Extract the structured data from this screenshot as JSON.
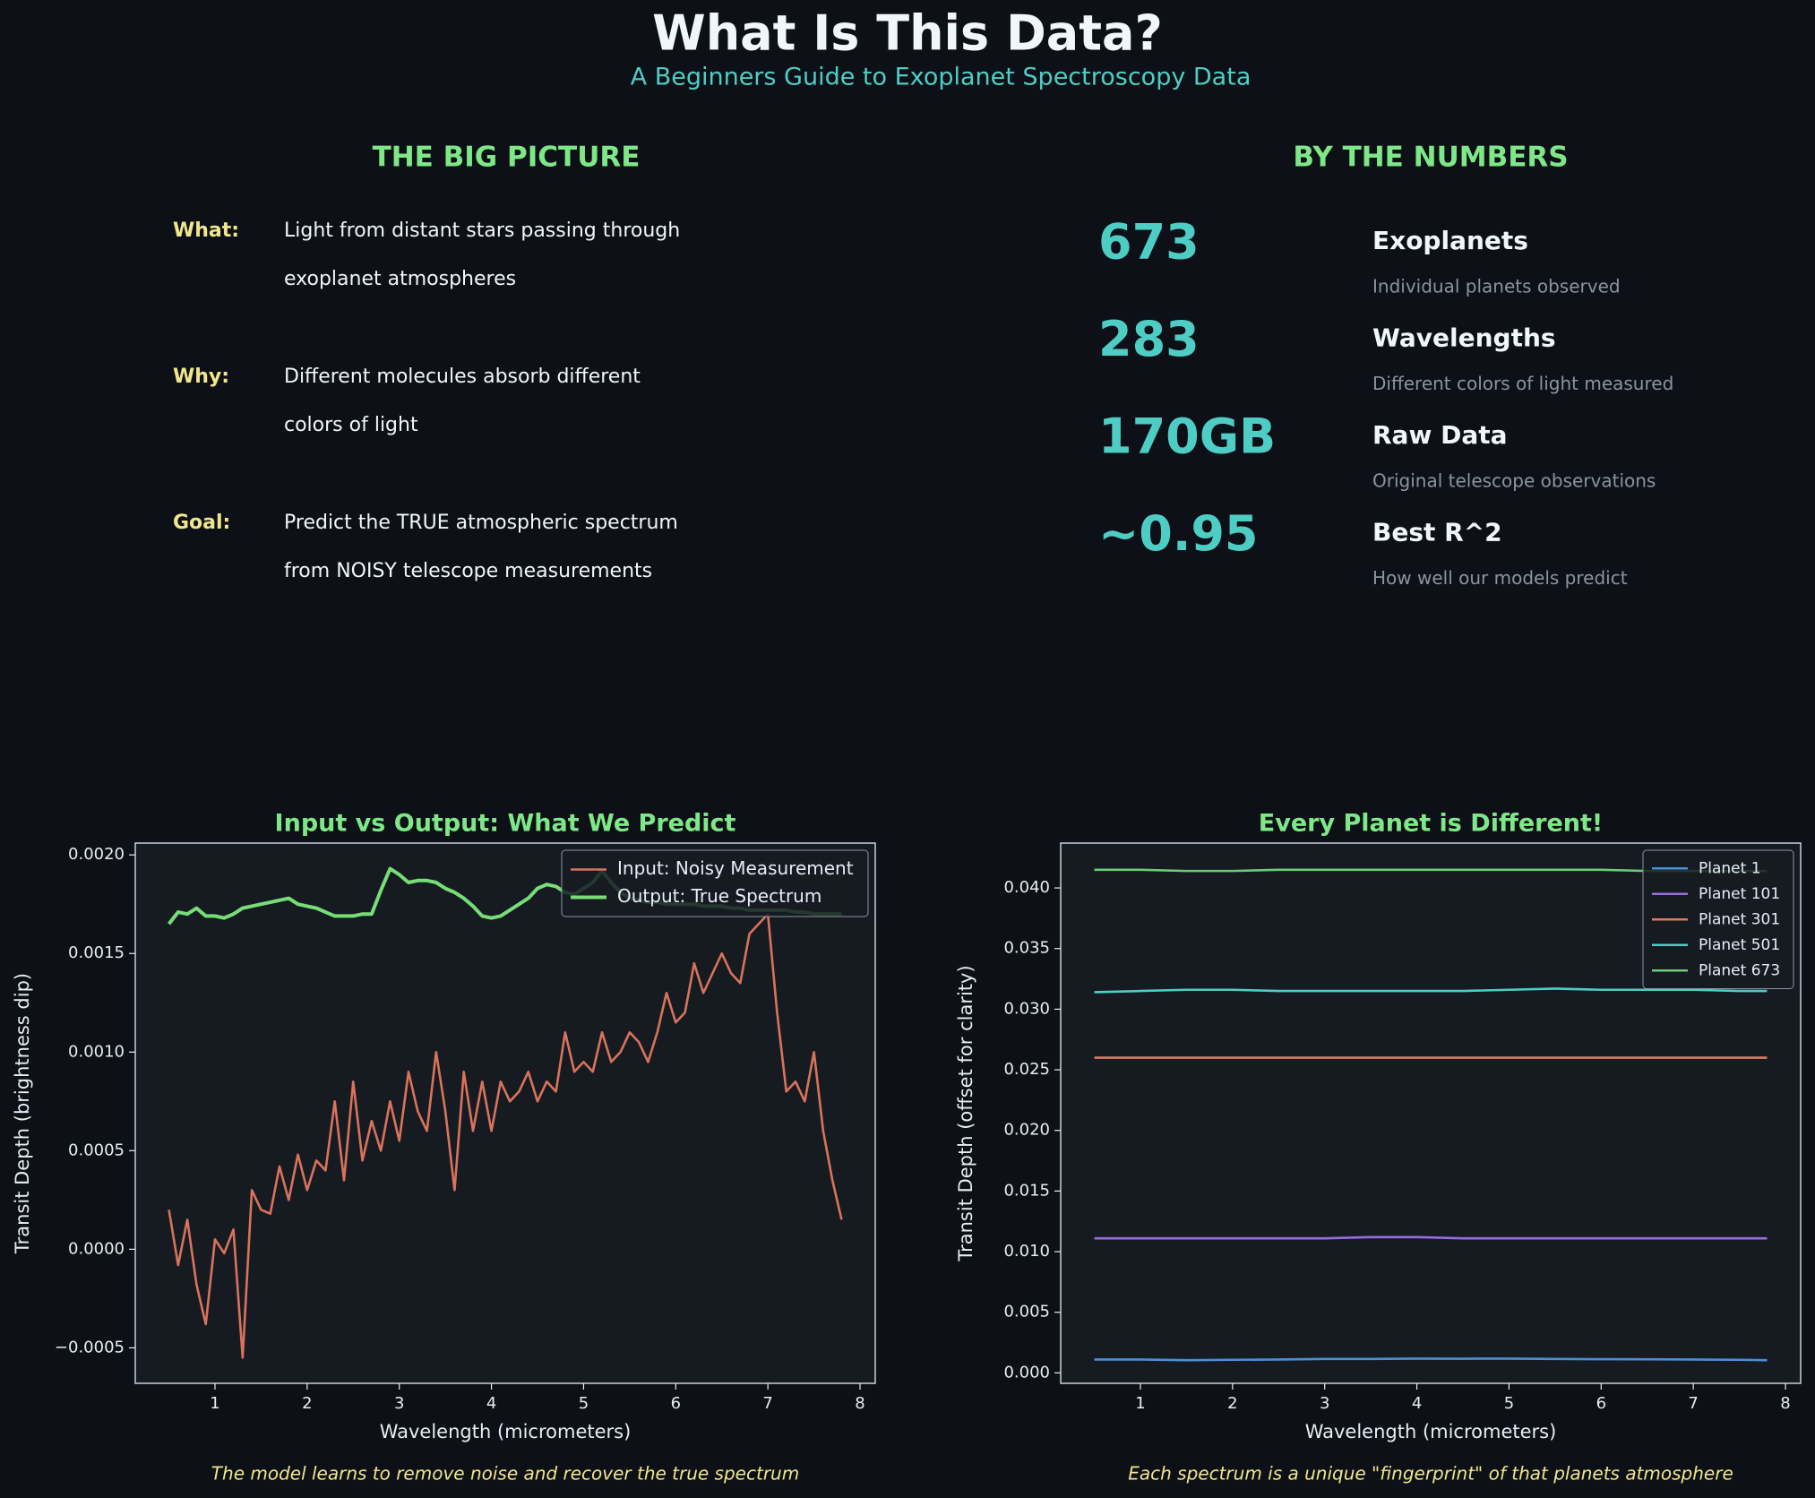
{
  "header": {
    "title": "What Is This Data?",
    "subtitle": "A Beginners Guide to Exoplanet Spectroscopy Data"
  },
  "big_picture": {
    "title": "THE BIG PICTURE",
    "items": [
      {
        "label": "What:",
        "lines": [
          "Light from distant stars passing through",
          "exoplanet atmospheres"
        ]
      },
      {
        "label": "Why:",
        "lines": [
          "Different molecules absorb different",
          "colors of light"
        ]
      },
      {
        "label": "Goal:",
        "lines": [
          "Predict the TRUE atmospheric spectrum",
          "from NOISY telescope measurements"
        ]
      }
    ]
  },
  "numbers": {
    "title": "BY THE NUMBERS",
    "stats": [
      {
        "value": "673",
        "label": "Exoplanets",
        "description": "Individual planets observed"
      },
      {
        "value": "283",
        "label": "Wavelengths",
        "description": "Different colors of light measured"
      },
      {
        "value": "170GB",
        "label": "Raw Data",
        "description": "Original telescope observations"
      },
      {
        "value": "~0.95",
        "label": "Best R^2",
        "description": "How well our models predict"
      }
    ]
  },
  "chart_data": [
    {
      "type": "line",
      "title": "Input vs Output: What We Predict",
      "x_label": "Wavelength (micrometers)",
      "y_label": "Transit Depth (brightness dip)",
      "caption": "The model learns to remove noise and recover the true spectrum",
      "legend": "upper right",
      "x": [
        0.5,
        0.6,
        0.7,
        0.8,
        0.9,
        1.0,
        1.1,
        1.2,
        1.3,
        1.4,
        1.5,
        1.6,
        1.7,
        1.8,
        1.9,
        2.0,
        2.1,
        2.2,
        2.3,
        2.4,
        2.5,
        2.6,
        2.7,
        2.8,
        2.9,
        3.0,
        3.1,
        3.2,
        3.3,
        3.4,
        3.5,
        3.6,
        3.7,
        3.8,
        3.9,
        4.0,
        4.1,
        4.2,
        4.3,
        4.4,
        4.5,
        4.6,
        4.7,
        4.8,
        4.9,
        5.0,
        5.1,
        5.2,
        5.3,
        5.4,
        5.5,
        5.6,
        5.7,
        5.8,
        5.9,
        6.0,
        6.1,
        6.2,
        6.3,
        6.4,
        6.5,
        6.6,
        6.7,
        6.8,
        6.9,
        7.0,
        7.1,
        7.2,
        7.3,
        7.4,
        7.5,
        7.6,
        7.7,
        7.8
      ],
      "series": [
        {
          "name": "Input: Noisy Measurement",
          "color": "#d9735b",
          "values": [
            0.0002,
            -8e-05,
            0.00015,
            -0.00018,
            -0.00038,
            5e-05,
            -2e-05,
            0.0001,
            -0.00055,
            0.0003,
            0.0002,
            0.00018,
            0.00042,
            0.00025,
            0.00048,
            0.0003,
            0.00045,
            0.0004,
            0.00075,
            0.00035,
            0.00085,
            0.00045,
            0.00065,
            0.0005,
            0.00075,
            0.00055,
            0.0009,
            0.0007,
            0.0006,
            0.001,
            0.0007,
            0.0003,
            0.0009,
            0.0006,
            0.00085,
            0.0006,
            0.00085,
            0.00075,
            0.0008,
            0.0009,
            0.00075,
            0.00085,
            0.0008,
            0.0011,
            0.0009,
            0.00095,
            0.0009,
            0.0011,
            0.00095,
            0.001,
            0.0011,
            0.00105,
            0.00095,
            0.0011,
            0.0013,
            0.00115,
            0.0012,
            0.00145,
            0.0013,
            0.0014,
            0.0015,
            0.0014,
            0.00135,
            0.0016,
            0.00165,
            0.0017,
            0.0012,
            0.0008,
            0.00085,
            0.00075,
            0.001,
            0.0006,
            0.00035,
            0.00015
          ]
        },
        {
          "name": "Output: True Spectrum",
          "color": "#77dd77",
          "values": [
            0.00165,
            0.00171,
            0.0017,
            0.00173,
            0.00169,
            0.00169,
            0.00168,
            0.0017,
            0.00173,
            0.00174,
            0.00175,
            0.00176,
            0.00177,
            0.00178,
            0.00175,
            0.00174,
            0.00173,
            0.00171,
            0.00169,
            0.00169,
            0.00169,
            0.0017,
            0.0017,
            0.00182,
            0.00193,
            0.0019,
            0.00186,
            0.00187,
            0.00187,
            0.00186,
            0.00183,
            0.00181,
            0.00178,
            0.00174,
            0.00169,
            0.00168,
            0.00169,
            0.00172,
            0.00175,
            0.00178,
            0.00183,
            0.00185,
            0.00184,
            0.00181,
            0.0018,
            0.00183,
            0.00186,
            0.00192,
            0.00186,
            0.00181,
            0.00178,
            0.00177,
            0.00176,
            0.00176,
            0.00175,
            0.00175,
            0.00175,
            0.00175,
            0.00174,
            0.00174,
            0.00174,
            0.00173,
            0.00173,
            0.00172,
            0.00172,
            0.00172,
            0.00172,
            0.00172,
            0.00171,
            0.00171,
            0.0017,
            0.0017,
            0.0017,
            0.0017
          ]
        }
      ],
      "xlim": [
        0.135,
        8.165
      ],
      "xticks": [
        1,
        2,
        3,
        4,
        5,
        6,
        7,
        8
      ],
      "ylim": [
        -0.00068,
        0.00206
      ],
      "yticks": [
        {
          "value": -0.0005,
          "label": "−0.0005"
        },
        {
          "value": 0,
          "label": "0.0000"
        },
        0.0005,
        {
          "value": 0.001,
          "label": "0.0010"
        },
        0.0015,
        {
          "value": 0.002,
          "label": "0.0020"
        }
      ]
    },
    {
      "type": "line",
      "title": "Every Planet is Different!",
      "x_label": "Wavelength (micrometers)",
      "y_label": "Transit Depth (offset for clarity)",
      "caption": "Each spectrum is a unique \"fingerprint\" of that planets atmosphere",
      "legend": "upper right",
      "x": [
        0.5,
        1.0,
        1.5,
        2.0,
        2.5,
        3.0,
        3.5,
        4.0,
        4.5,
        5.0,
        5.5,
        6.0,
        6.5,
        7.0,
        7.5,
        7.8
      ],
      "series": [
        {
          "name": "Planet 1",
          "color": "#4a90d9",
          "values": [
            0.0011,
            0.0011,
            0.00105,
            0.00108,
            0.0011,
            0.00115,
            0.00115,
            0.00118,
            0.00117,
            0.00118,
            0.00115,
            0.00113,
            0.00112,
            0.0011,
            0.00108,
            0.00105
          ]
        },
        {
          "name": "Planet 101",
          "color": "#9b6bdf",
          "values": [
            0.0111,
            0.0111,
            0.0111,
            0.0111,
            0.0111,
            0.0111,
            0.0112,
            0.0112,
            0.0111,
            0.0111,
            0.0111,
            0.0111,
            0.0111,
            0.0111,
            0.0111,
            0.0111
          ]
        },
        {
          "name": "Planet 301",
          "color": "#e07a5f",
          "values": [
            0.026,
            0.026,
            0.026,
            0.026,
            0.026,
            0.026,
            0.026,
            0.026,
            0.026,
            0.026,
            0.026,
            0.026,
            0.026,
            0.026,
            0.026,
            0.026
          ]
        },
        {
          "name": "Planet 501",
          "color": "#4ecdc4",
          "values": [
            0.0314,
            0.0315,
            0.0316,
            0.0316,
            0.0315,
            0.0315,
            0.0315,
            0.0315,
            0.0315,
            0.0316,
            0.0317,
            0.0316,
            0.0316,
            0.0316,
            0.0315,
            0.0315
          ]
        },
        {
          "name": "Planet 673",
          "color": "#6bcb77",
          "values": [
            0.0415,
            0.0415,
            0.0414,
            0.0414,
            0.0415,
            0.0415,
            0.0415,
            0.0415,
            0.0415,
            0.0415,
            0.0415,
            0.0415,
            0.0414,
            0.0414,
            0.0414,
            0.0414
          ]
        }
      ],
      "xlim": [
        0.135,
        8.165
      ],
      "xticks": [
        1,
        2,
        3,
        4,
        5,
        6,
        7,
        8
      ],
      "ylim": [
        -0.00086,
        0.0437
      ],
      "yticks": [
        {
          "value": 0,
          "label": "0.000"
        },
        0.005,
        {
          "value": 0.01,
          "label": "0.010"
        },
        0.015,
        {
          "value": 0.02,
          "label": "0.020"
        },
        0.025,
        {
          "value": 0.03,
          "label": "0.030"
        },
        0.035,
        {
          "value": 0.04,
          "label": "0.040"
        }
      ]
    }
  ]
}
